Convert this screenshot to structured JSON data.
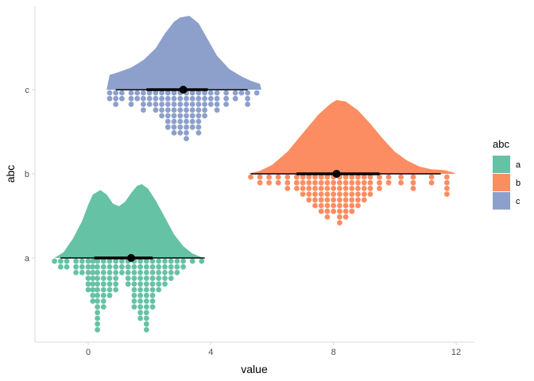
{
  "chart_data": {
    "type": "raincloud",
    "xlabel": "value",
    "ylabel": "abc",
    "xlim": [
      -1.4,
      12.6
    ],
    "x_ticks": [
      0,
      4,
      8,
      12
    ],
    "categories": [
      "a",
      "b",
      "c"
    ],
    "grid": false,
    "legend": {
      "title": "abc",
      "placement": "right",
      "entries": [
        {
          "label": "a",
          "color": "#66c2a5"
        },
        {
          "label": "b",
          "color": "#fc8d62"
        },
        {
          "label": "c",
          "color": "#8da0cb"
        }
      ]
    },
    "series": [
      {
        "category": "a",
        "color": "#66c2a5",
        "point": 1.4,
        "interval_thin": [
          -0.9,
          3.8
        ],
        "interval_thick": [
          0.2,
          2.1
        ],
        "density": [
          [
            -1.1,
            0.0
          ],
          [
            -0.8,
            0.08
          ],
          [
            -0.5,
            0.26
          ],
          [
            -0.2,
            0.5
          ],
          [
            0.0,
            0.72
          ],
          [
            0.15,
            0.86
          ],
          [
            0.4,
            0.92
          ],
          [
            0.6,
            0.86
          ],
          [
            0.8,
            0.74
          ],
          [
            1.0,
            0.7
          ],
          [
            1.2,
            0.76
          ],
          [
            1.4,
            0.88
          ],
          [
            1.6,
            0.98
          ],
          [
            1.75,
            1.0
          ],
          [
            1.95,
            0.94
          ],
          [
            2.2,
            0.78
          ],
          [
            2.5,
            0.55
          ],
          [
            2.8,
            0.32
          ],
          [
            3.1,
            0.16
          ],
          [
            3.4,
            0.06
          ],
          [
            3.75,
            0.0
          ]
        ],
        "dots": [
          {
            "x": -1.1,
            "count": 1
          },
          {
            "x": -0.9,
            "count": 2
          },
          {
            "x": -0.7,
            "count": 2
          },
          {
            "x": -0.4,
            "count": 3
          },
          {
            "x": -0.2,
            "count": 3
          },
          {
            "x": 0.0,
            "count": 6
          },
          {
            "x": 0.15,
            "count": 8
          },
          {
            "x": 0.3,
            "count": 13
          },
          {
            "x": 0.5,
            "count": 9
          },
          {
            "x": 0.7,
            "count": 7
          },
          {
            "x": 0.9,
            "count": 6
          },
          {
            "x": 1.1,
            "count": 3
          },
          {
            "x": 1.3,
            "count": 5
          },
          {
            "x": 1.5,
            "count": 9
          },
          {
            "x": 1.7,
            "count": 11
          },
          {
            "x": 1.9,
            "count": 13
          },
          {
            "x": 2.1,
            "count": 9
          },
          {
            "x": 2.3,
            "count": 6
          },
          {
            "x": 2.5,
            "count": 5
          },
          {
            "x": 2.7,
            "count": 4
          },
          {
            "x": 2.9,
            "count": 3
          },
          {
            "x": 3.1,
            "count": 2
          },
          {
            "x": 3.4,
            "count": 1
          },
          {
            "x": 3.7,
            "count": 1
          }
        ]
      },
      {
        "category": "b",
        "color": "#fc8d62",
        "point": 8.1,
        "interval_thin": [
          5.3,
          11.5
        ],
        "interval_thick": [
          6.8,
          9.5
        ],
        "density": [
          [
            5.2,
            0.0
          ],
          [
            5.6,
            0.04
          ],
          [
            6.0,
            0.12
          ],
          [
            6.5,
            0.3
          ],
          [
            7.0,
            0.55
          ],
          [
            7.5,
            0.8
          ],
          [
            7.9,
            0.95
          ],
          [
            8.1,
            1.0
          ],
          [
            8.4,
            0.98
          ],
          [
            8.8,
            0.86
          ],
          [
            9.2,
            0.68
          ],
          [
            9.6,
            0.48
          ],
          [
            10.0,
            0.3
          ],
          [
            10.4,
            0.18
          ],
          [
            10.8,
            0.1
          ],
          [
            11.2,
            0.06
          ],
          [
            11.6,
            0.05
          ],
          [
            11.9,
            0.02
          ],
          [
            12.0,
            0.0
          ]
        ],
        "dots": [
          {
            "x": 5.3,
            "count": 1
          },
          {
            "x": 5.6,
            "count": 2
          },
          {
            "x": 5.9,
            "count": 2
          },
          {
            "x": 6.2,
            "count": 2
          },
          {
            "x": 6.5,
            "count": 3
          },
          {
            "x": 6.8,
            "count": 3
          },
          {
            "x": 7.0,
            "count": 4
          },
          {
            "x": 7.2,
            "count": 5
          },
          {
            "x": 7.4,
            "count": 6
          },
          {
            "x": 7.6,
            "count": 7
          },
          {
            "x": 7.8,
            "count": 8
          },
          {
            "x": 8.0,
            "count": 7
          },
          {
            "x": 8.2,
            "count": 9
          },
          {
            "x": 8.4,
            "count": 8
          },
          {
            "x": 8.6,
            "count": 7
          },
          {
            "x": 8.8,
            "count": 6
          },
          {
            "x": 9.0,
            "count": 5
          },
          {
            "x": 9.2,
            "count": 4
          },
          {
            "x": 9.5,
            "count": 3
          },
          {
            "x": 9.8,
            "count": 2
          },
          {
            "x": 10.2,
            "count": 2
          },
          {
            "x": 10.6,
            "count": 3
          },
          {
            "x": 11.2,
            "count": 2
          },
          {
            "x": 11.7,
            "count": 4
          }
        ]
      },
      {
        "category": "c",
        "color": "#8da0cb",
        "point": 3.1,
        "interval_thin": [
          0.9,
          5.2
        ],
        "interval_thick": [
          1.9,
          3.9
        ],
        "density": [
          [
            0.6,
            0.0
          ],
          [
            0.7,
            0.2
          ],
          [
            1.0,
            0.24
          ],
          [
            1.4,
            0.3
          ],
          [
            1.8,
            0.4
          ],
          [
            2.2,
            0.56
          ],
          [
            2.5,
            0.76
          ],
          [
            2.8,
            0.92
          ],
          [
            3.0,
            0.98
          ],
          [
            3.3,
            1.0
          ],
          [
            3.6,
            0.9
          ],
          [
            3.9,
            0.68
          ],
          [
            4.2,
            0.46
          ],
          [
            4.6,
            0.28
          ],
          [
            5.0,
            0.18
          ],
          [
            5.3,
            0.12
          ],
          [
            5.6,
            0.08
          ],
          [
            5.65,
            0.0
          ]
        ],
        "dots": [
          {
            "x": 0.7,
            "count": 2
          },
          {
            "x": 0.9,
            "count": 3
          },
          {
            "x": 1.1,
            "count": 2
          },
          {
            "x": 1.4,
            "count": 3
          },
          {
            "x": 1.6,
            "count": 2
          },
          {
            "x": 1.8,
            "count": 4
          },
          {
            "x": 2.0,
            "count": 3
          },
          {
            "x": 2.2,
            "count": 4
          },
          {
            "x": 2.4,
            "count": 5
          },
          {
            "x": 2.6,
            "count": 7
          },
          {
            "x": 2.8,
            "count": 8
          },
          {
            "x": 3.0,
            "count": 8
          },
          {
            "x": 3.2,
            "count": 9
          },
          {
            "x": 3.4,
            "count": 7
          },
          {
            "x": 3.6,
            "count": 8
          },
          {
            "x": 3.8,
            "count": 5
          },
          {
            "x": 4.0,
            "count": 3
          },
          {
            "x": 4.2,
            "count": 4
          },
          {
            "x": 4.5,
            "count": 3
          },
          {
            "x": 4.8,
            "count": 2
          },
          {
            "x": 5.0,
            "count": 1
          },
          {
            "x": 5.2,
            "count": 3
          },
          {
            "x": 5.5,
            "count": 1
          }
        ]
      }
    ]
  }
}
